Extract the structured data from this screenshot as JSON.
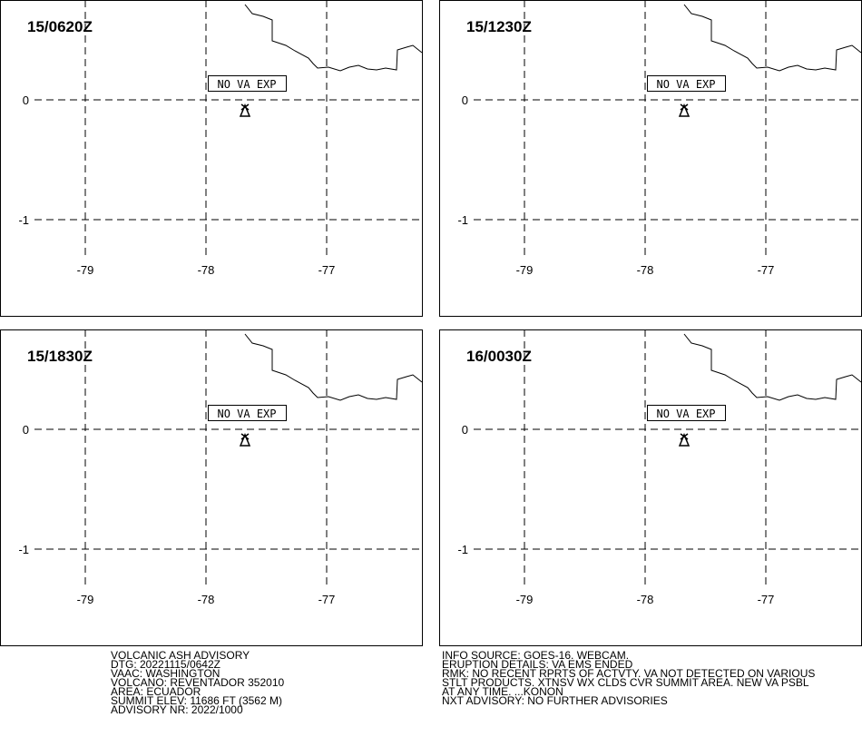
{
  "panels": [
    {
      "time": "15/0620Z",
      "annotation": "NO VA EXP",
      "lat_labels": [
        "0",
        "-1"
      ],
      "lon_labels": [
        "-79",
        "-78",
        "-77"
      ]
    },
    {
      "time": "15/1230Z",
      "annotation": "NO VA EXP",
      "lat_labels": [
        "0",
        "-1"
      ],
      "lon_labels": [
        "-79",
        "-78",
        "-77"
      ]
    },
    {
      "time": "15/1830Z",
      "annotation": "NO VA EXP",
      "lat_labels": [
        "0",
        "-1"
      ],
      "lon_labels": [
        "-79",
        "-78",
        "-77"
      ]
    },
    {
      "time": "16/0030Z",
      "annotation": "NO VA EXP",
      "lat_labels": [
        "0",
        "-1"
      ],
      "lon_labels": [
        "-79",
        "-78",
        "-77"
      ]
    }
  ],
  "advisory": {
    "left": [
      "VOLCANIC ASH ADVISORY",
      "DTG: 20221115/0642Z",
      "VAAC: WASHINGTON",
      "VOLCANO: REVENTADOR 352010",
      "AREA: ECUADOR",
      "SUMMIT ELEV: 11686 FT (3562 M)",
      "ADVISORY NR: 2022/1000"
    ],
    "right": [
      "INFO SOURCE: GOES-16. WEBCAM.",
      "ERUPTION DETAILS: VA EMS ENDED",
      "RMK: NO RECENT RPRTS OF ACTVTY. VA NOT DETECTED ON VARIOUS",
      "STLT PRODUCTS. XTNSV WX CLDS CVR SUMMIT AREA. NEW VA PSBL",
      "AT ANY TIME. ...KONON",
      "NXT ADVISORY: NO FURTHER ADVISORIES"
    ]
  }
}
